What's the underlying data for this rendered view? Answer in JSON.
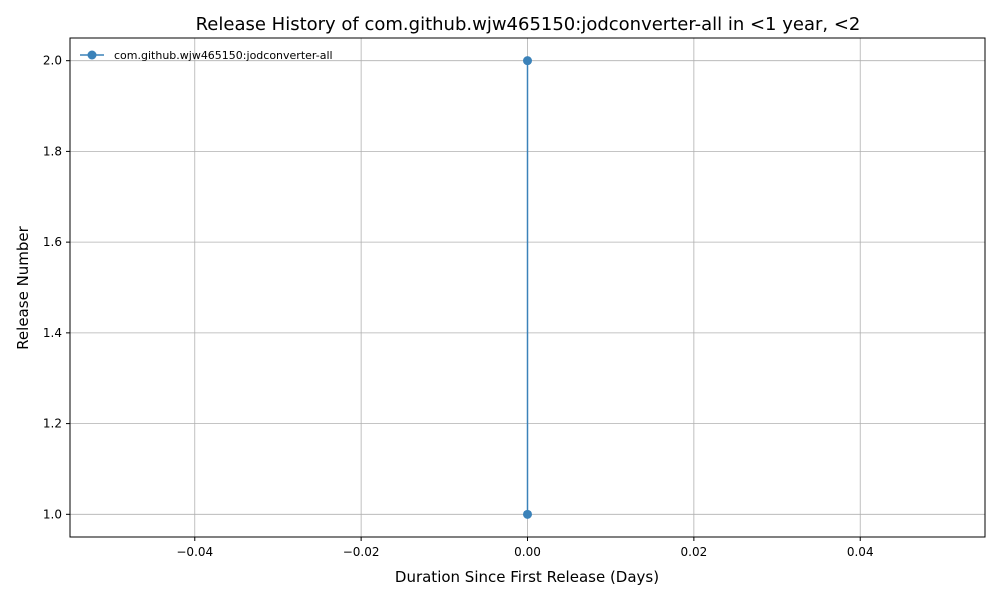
{
  "chart_data": {
    "type": "line",
    "title": "Release History of com.github.wjw465150:jodconverter-all in <1 year, <2",
    "xlabel": "Duration Since First Release (Days)",
    "ylabel": "Release Number",
    "xlim": [
      -0.055,
      0.055
    ],
    "ylim": [
      0.95,
      2.05
    ],
    "xticks": [
      -0.04,
      -0.02,
      0.0,
      0.02,
      0.04
    ],
    "xtick_labels": [
      "−0.04",
      "−0.02",
      "0.00",
      "0.02",
      "0.04"
    ],
    "yticks": [
      1.0,
      1.2,
      1.4,
      1.6,
      1.8,
      2.0
    ],
    "ytick_labels": [
      "1.0",
      "1.2",
      "1.4",
      "1.6",
      "1.8",
      "2.0"
    ],
    "grid": true,
    "legend_position": "top-left",
    "series": [
      {
        "name": "com.github.wjw465150:jodconverter-all",
        "color": "#3b82b9",
        "marker": "circle",
        "x": [
          0,
          0
        ],
        "y": [
          1,
          2
        ]
      }
    ]
  }
}
